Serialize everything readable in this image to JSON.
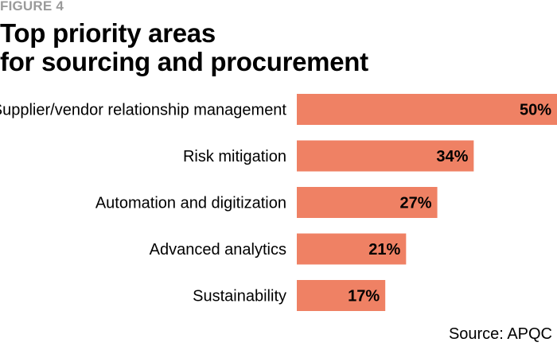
{
  "figure_label": "FIGURE 4",
  "title_line1": "Top priority areas",
  "title_line2": "for sourcing and procurement",
  "source": "Source: APQC",
  "colors": {
    "bar": "#ef8164",
    "label_text": "#000000"
  },
  "chart_data": {
    "type": "bar",
    "orientation": "horizontal",
    "title": "Top priority areas for sourcing and procurement",
    "categories": [
      "Supplier/vendor relationship management",
      "Risk mitigation",
      "Automation and digitization",
      "Advanced analytics",
      "Sustainability"
    ],
    "values": [
      50,
      34,
      27,
      21,
      17
    ],
    "value_labels": [
      "50%",
      "34%",
      "27%",
      "21%",
      "17%"
    ],
    "unit": "%",
    "xlim": [
      0,
      50
    ],
    "grid": false,
    "legend": "none"
  }
}
